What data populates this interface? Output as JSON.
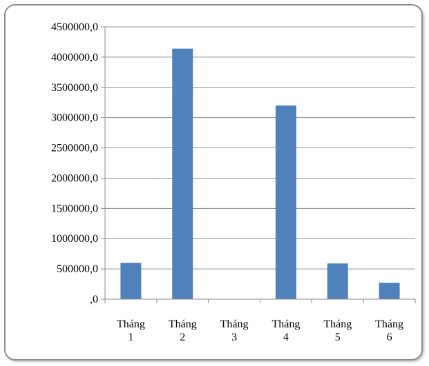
{
  "chart_data": {
    "type": "bar",
    "categories": [
      [
        "Tháng",
        "1"
      ],
      [
        "Tháng",
        "2"
      ],
      [
        "Tháng",
        "3"
      ],
      [
        "Tháng",
        "4"
      ],
      [
        "Tháng",
        "5"
      ],
      [
        "Tháng",
        "6"
      ]
    ],
    "values": [
      600000,
      4140000,
      0,
      3200000,
      590000,
      270000
    ],
    "ylim": [
      0,
      4500000
    ],
    "y_ticks": [
      0,
      500000,
      1000000,
      1500000,
      2000000,
      2500000,
      3000000,
      3500000,
      4000000,
      4500000
    ],
    "y_tick_labels": [
      ",0",
      "500000,0",
      "1000000,0",
      "1500000,0",
      "2000000,0",
      "2500000,0",
      "3000000,0",
      "3500000,0",
      "4000000,0",
      "4500000,0"
    ],
    "grid": true,
    "legend": "none",
    "bar_color": "#4f81bd"
  }
}
